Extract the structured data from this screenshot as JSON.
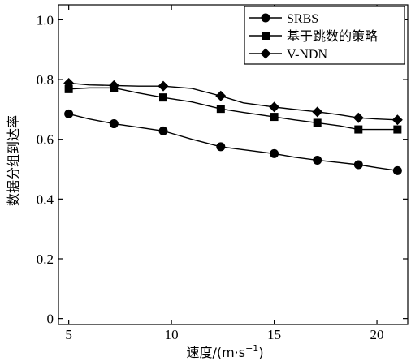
{
  "chart_data": {
    "type": "line",
    "xlabel_main": "速度/(m·s",
    "xlabel_sup": "−1",
    "xlabel_end": ")",
    "ylabel": "数据分组到达率",
    "xlim": [
      4.5,
      21.5
    ],
    "ylim": [
      -0.02,
      1.05
    ],
    "xticks": [
      5,
      10,
      15,
      20
    ],
    "yticks": [
      0,
      0.2,
      0.4,
      0.6,
      0.8,
      1.0
    ],
    "xtick_labels": [
      "5",
      "10",
      "15",
      "20"
    ],
    "ytick_labels": [
      "0",
      "0.2",
      "0.4",
      "0.6",
      "0.8",
      "1.0"
    ],
    "grid": false,
    "legend_position": "top-right",
    "series": [
      {
        "name": "SRBS",
        "marker": "circle",
        "color": "#000000",
        "x": [
          5,
          6,
          7.2,
          8.4,
          9.6,
          11,
          12.4,
          13.5,
          15,
          16,
          17.1,
          18.2,
          19.1,
          20,
          21
        ],
        "y": [
          0.685,
          0.668,
          0.652,
          0.64,
          0.628,
          0.6,
          0.575,
          0.565,
          0.552,
          0.54,
          0.53,
          0.522,
          0.515,
          0.505,
          0.495
        ]
      },
      {
        "name": "基于跳数的策略",
        "marker": "square",
        "color": "#000000",
        "x": [
          5,
          6,
          7.2,
          8.4,
          9.6,
          11,
          12.4,
          13.5,
          15,
          16,
          17.1,
          18.2,
          19.1,
          20,
          21
        ],
        "y": [
          0.768,
          0.772,
          0.772,
          0.755,
          0.74,
          0.725,
          0.702,
          0.69,
          0.675,
          0.665,
          0.655,
          0.645,
          0.633,
          0.633,
          0.633
        ]
      },
      {
        "name": "V-NDN",
        "marker": "diamond",
        "color": "#000000",
        "x": [
          5,
          6,
          7.2,
          8.4,
          9.6,
          11,
          12.4,
          13.5,
          15,
          16,
          17.1,
          18.2,
          19.1,
          20,
          21
        ],
        "y": [
          0.788,
          0.782,
          0.78,
          0.778,
          0.778,
          0.77,
          0.745,
          0.722,
          0.708,
          0.7,
          0.692,
          0.682,
          0.672,
          0.668,
          0.665
        ]
      }
    ],
    "marker_x": [
      5,
      7.2,
      9.6,
      12.4,
      15,
      17.1,
      19.1,
      21
    ]
  }
}
